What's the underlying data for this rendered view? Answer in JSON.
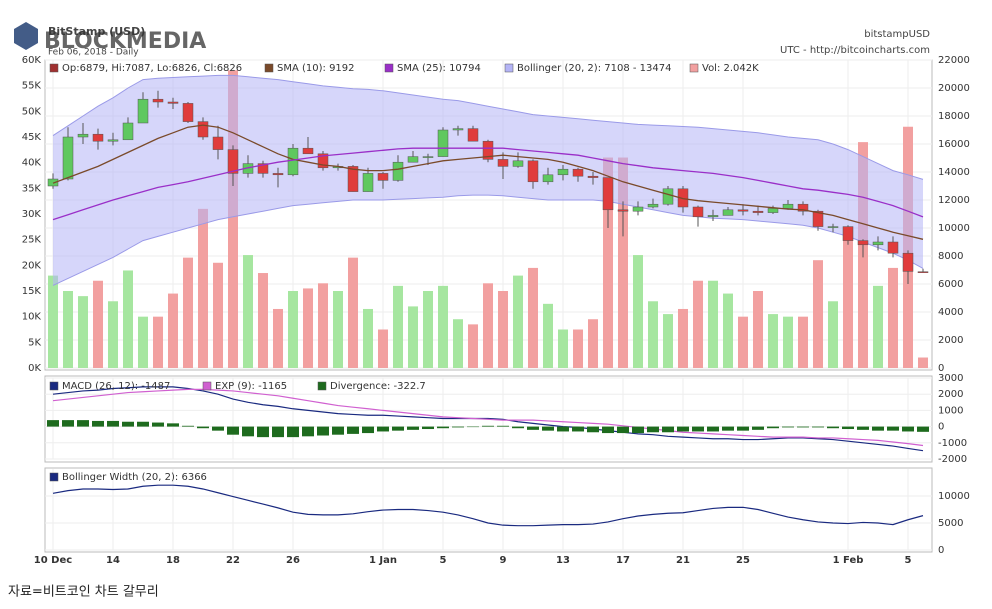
{
  "header": {
    "title": "BitStamp (USD)",
    "subtitle": "Feb 06, 2018 - Daily",
    "symbol": "bitstampUSD",
    "credit": "UTC - http://bitcoincharts.com",
    "watermark": "BLOCKMEDIA"
  },
  "caption": "자료=비트코인 차트 갈무리",
  "chart_data": [
    {
      "type": "candlestick",
      "ohlc": {
        "name": "Op:6879, Hi:7087, Lo:6826, Cl:6826",
        "color": "#a03030",
        "up_color": "#5fc85f",
        "down_color": "#e03c3c",
        "open": [
          13000,
          13500,
          16500,
          16700,
          16200,
          16300,
          17500,
          19200,
          19000,
          18900,
          17600,
          16500,
          15600,
          13900,
          14600,
          13900,
          13800,
          15700,
          15300,
          14300,
          14400,
          12600,
          13900,
          13400,
          14700,
          15100,
          15100,
          17000,
          17100,
          16200,
          14900,
          14400,
          14800,
          13300,
          13800,
          14200,
          13700,
          13600,
          11300,
          11200,
          11500,
          11700,
          12800,
          11500,
          10800,
          10900,
          11300,
          11200,
          11100,
          11400,
          11700,
          11200,
          10100,
          10100,
          9100,
          8800,
          9000,
          8200,
          6879
        ],
        "high": [
          13900,
          17200,
          17500,
          17100,
          16800,
          17900,
          19700,
          19800,
          19300,
          19000,
          17900,
          17300,
          15900,
          15200,
          14800,
          14300,
          16000,
          16500,
          15500,
          14600,
          14500,
          14300,
          14000,
          15200,
          15500,
          15300,
          17200,
          17300,
          17300,
          16300,
          15400,
          15400,
          14900,
          14300,
          14500,
          14300,
          14000,
          13600,
          11900,
          11900,
          12100,
          13000,
          13000,
          11600,
          11300,
          11500,
          11700,
          11600,
          11600,
          12000,
          11900,
          11300,
          10300,
          10200,
          9200,
          9400,
          9400,
          8400,
          7087
        ],
        "low": [
          12800,
          13400,
          16000,
          15600,
          15900,
          16300,
          17500,
          18600,
          18500,
          17500,
          16300,
          14900,
          13000,
          13600,
          13600,
          12900,
          13700,
          15300,
          14100,
          14100,
          12600,
          12600,
          12800,
          13300,
          14700,
          14500,
          15100,
          16600,
          16200,
          14700,
          13500,
          14300,
          12800,
          13100,
          13400,
          13300,
          13100,
          10000,
          9400,
          10900,
          11400,
          11600,
          11100,
          10100,
          10500,
          10900,
          10900,
          10900,
          11000,
          11300,
          10900,
          9800,
          9700,
          8800,
          7900,
          8400,
          7900,
          6000,
          6826
        ],
        "close": [
          13500,
          16500,
          16700,
          16200,
          16300,
          17500,
          19200,
          19000,
          18900,
          17600,
          16500,
          15600,
          13900,
          14600,
          13900,
          13800,
          15700,
          15300,
          14300,
          14400,
          12600,
          13900,
          13400,
          14700,
          15100,
          15100,
          17000,
          17100,
          16200,
          14900,
          14400,
          14800,
          13300,
          13800,
          14200,
          13700,
          13600,
          11300,
          11200,
          11500,
          11700,
          12800,
          11500,
          10800,
          10900,
          11300,
          11200,
          11100,
          11400,
          11700,
          11200,
          10100,
          10100,
          9100,
          8800,
          9000,
          8200,
          6900,
          6826
        ]
      },
      "volume": {
        "name": "Vol: 2.042K",
        "color": "#f2a0a0",
        "up_color": "#a6e6a0",
        "down_color": "#f2a0a0",
        "values": [
          18,
          15,
          14,
          17,
          13,
          19,
          10,
          10,
          14.5,
          21.5,
          31,
          20.5,
          58,
          22,
          18.5,
          11.5,
          15,
          15.5,
          16.5,
          15,
          21.5,
          11.5,
          7.5,
          16,
          12,
          15,
          16,
          9.5,
          8.5,
          16.5,
          15,
          18,
          19.5,
          12.5,
          7.5,
          7.5,
          9.5,
          41,
          41,
          22,
          13,
          10.5,
          11.5,
          17,
          17,
          14.5,
          10,
          15,
          10.5,
          10,
          10,
          21,
          13,
          25,
          44,
          16,
          19.5,
          47,
          2.042
        ]
      },
      "bands": [
        {
          "name": "Bollinger (20, 2): 7108 - 13474",
          "color": "#b4b4f6",
          "axis": "y2",
          "upper": [
            16600,
            17300,
            18000,
            18700,
            19300,
            20000,
            20600,
            20700,
            20750,
            20800,
            20850,
            20900,
            20900,
            20800,
            20700,
            20600,
            20450,
            20300,
            20150,
            20050,
            19950,
            19900,
            19800,
            19650,
            19500,
            19350,
            19200,
            19100,
            18900,
            18700,
            18500,
            18300,
            18100,
            18000,
            17900,
            17800,
            17700,
            17600,
            17500,
            17400,
            17350,
            17300,
            17250,
            17200,
            17100,
            17000,
            16900,
            16800,
            16650,
            16500,
            16400,
            16300,
            16000,
            15600,
            15100,
            14600,
            14100,
            13800,
            13474
          ],
          "lower": [
            5900,
            6400,
            6900,
            7400,
            7900,
            8500,
            9100,
            9400,
            9700,
            10000,
            10300,
            10600,
            10800,
            11000,
            11200,
            11400,
            11600,
            11700,
            11800,
            11900,
            12000,
            12000,
            12000,
            12050,
            12100,
            12150,
            12200,
            12300,
            12350,
            12350,
            12300,
            12200,
            12100,
            12000,
            12000,
            12000,
            12000,
            11900,
            11700,
            11500,
            11300,
            11100,
            10900,
            10800,
            10700,
            10650,
            10600,
            10500,
            10400,
            10300,
            10200,
            10000,
            9700,
            9400,
            9000,
            8600,
            8200,
            7700,
            7108
          ]
        }
      ],
      "lines": [
        {
          "name": "SMA (10): 9192",
          "color": "#7a4a2a",
          "axis": "y2",
          "values": [
            13200,
            13600,
            14000,
            14400,
            14900,
            15400,
            15900,
            16400,
            16800,
            17200,
            17350,
            17200,
            16800,
            16300,
            15800,
            15300,
            14900,
            14700,
            14500,
            14400,
            14200,
            14100,
            14100,
            14200,
            14400,
            14600,
            14800,
            14900,
            15000,
            15100,
            15200,
            15100,
            15000,
            14900,
            14700,
            14400,
            14100,
            13700,
            13300,
            13000,
            12700,
            12400,
            12100,
            11950,
            11850,
            11750,
            11650,
            11550,
            11450,
            11350,
            11300,
            11100,
            10900,
            10600,
            10300,
            10000,
            9700,
            9450,
            9192
          ]
        },
        {
          "name": "SMA (25): 10794",
          "color": "#9a2fc8",
          "axis": "y2",
          "values": [
            10600,
            10950,
            11300,
            11650,
            12000,
            12300,
            12600,
            12900,
            13100,
            13300,
            13550,
            13800,
            14050,
            14300,
            14500,
            14700,
            14850,
            15000,
            15150,
            15250,
            15350,
            15450,
            15550,
            15650,
            15700,
            15700,
            15700,
            15700,
            15700,
            15700,
            15700,
            15600,
            15500,
            15400,
            15300,
            15200,
            15000,
            14800,
            14600,
            14450,
            14300,
            14200,
            14100,
            14000,
            13900,
            13750,
            13600,
            13400,
            13200,
            13000,
            12800,
            12700,
            12550,
            12400,
            12200,
            11900,
            11600,
            11200,
            10794
          ]
        }
      ],
      "ylim": [
        0,
        60
      ],
      "yticks": [
        {
          "value": 0,
          "label": "0K"
        },
        {
          "value": 5,
          "label": "5K"
        },
        {
          "value": 10,
          "label": "10K"
        },
        {
          "value": 15,
          "label": "15K"
        },
        {
          "value": 20,
          "label": "20K"
        },
        {
          "value": 25,
          "label": "25K"
        },
        {
          "value": 30,
          "label": "30K"
        },
        {
          "value": 35,
          "label": "35K"
        },
        {
          "value": 40,
          "label": "40K"
        },
        {
          "value": 45,
          "label": "45K"
        },
        {
          "value": 50,
          "label": "50K"
        },
        {
          "value": 55,
          "label": "55K"
        },
        {
          "value": 60,
          "label": "60K"
        }
      ],
      "y2lim": [
        0,
        22000
      ],
      "y2ticks": [
        0,
        2000,
        4000,
        6000,
        8000,
        10000,
        12000,
        14000,
        16000,
        18000,
        20000,
        22000
      ],
      "grid": true
    },
    {
      "type": "macd",
      "series": [
        {
          "name": "MACD (26, 12): -1487",
          "color": "#1a2a80",
          "values": [
            2000,
            2100,
            2200,
            2250,
            2350,
            2400,
            2450,
            2450,
            2450,
            2350,
            2200,
            2000,
            1700,
            1500,
            1350,
            1250,
            1100,
            1000,
            900,
            800,
            750,
            700,
            700,
            650,
            600,
            550,
            500,
            500,
            500,
            500,
            450,
            300,
            200,
            100,
            0,
            -50,
            -150,
            -250,
            -350,
            -450,
            -500,
            -600,
            -650,
            -700,
            -750,
            -750,
            -800,
            -800,
            -750,
            -700,
            -700,
            -750,
            -800,
            -900,
            -1000,
            -1100,
            -1200,
            -1350,
            -1487
          ]
        },
        {
          "name": "EXP (9): -1165",
          "color": "#d060d0",
          "values": [
            1600,
            1700,
            1800,
            1900,
            2000,
            2100,
            2150,
            2200,
            2250,
            2300,
            2300,
            2250,
            2200,
            2100,
            2000,
            1900,
            1750,
            1600,
            1450,
            1300,
            1200,
            1100,
            1000,
            900,
            800,
            700,
            600,
            550,
            500,
            450,
            400,
            400,
            400,
            350,
            300,
            250,
            200,
            150,
            50,
            -50,
            -150,
            -250,
            -350,
            -400,
            -450,
            -500,
            -550,
            -600,
            -650,
            -650,
            -650,
            -700,
            -700,
            -750,
            -800,
            -850,
            -950,
            -1050,
            -1165
          ]
        },
        {
          "name": "Divergence: -322.7",
          "color": "#1e6b1e",
          "style": "bar",
          "values": [
            400,
            400,
            400,
            350,
            350,
            300,
            300,
            250,
            200,
            50,
            -100,
            -250,
            -500,
            -600,
            -650,
            -650,
            -650,
            -600,
            -550,
            -500,
            -450,
            -400,
            -300,
            -250,
            -200,
            -150,
            -100,
            -50,
            0,
            50,
            50,
            -100,
            -200,
            -250,
            -300,
            -300,
            -350,
            -400,
            -400,
            -400,
            -350,
            -350,
            -300,
            -300,
            -300,
            -250,
            -250,
            -200,
            -100,
            -50,
            -50,
            -50,
            -100,
            -150,
            -200,
            -250,
            -250,
            -300,
            -322.7
          ]
        }
      ],
      "ylim": [
        -2000,
        3000
      ],
      "yticks": [
        -2000,
        -1000,
        0,
        1000,
        2000,
        3000
      ],
      "grid": true
    },
    {
      "type": "line",
      "categories": [
        "10 Dec",
        null,
        null,
        null,
        "14",
        null,
        null,
        null,
        "18",
        null,
        null,
        null,
        "22",
        null,
        null,
        null,
        "26",
        null,
        null,
        null,
        null,
        null,
        "1 Jan",
        null,
        null,
        null,
        "5",
        null,
        null,
        null,
        "9",
        null,
        null,
        null,
        "13",
        null,
        null,
        null,
        "17",
        null,
        null,
        null,
        "21",
        null,
        null,
        null,
        "25",
        null,
        null,
        null,
        null,
        null,
        null,
        "1 Feb",
        null,
        null,
        null,
        "5",
        null
      ],
      "series": [
        {
          "name": "Bollinger Width (20, 2): 6366",
          "color": "#1a2a80",
          "values": [
            10500,
            11000,
            11300,
            11300,
            11200,
            11300,
            11800,
            12000,
            12000,
            11800,
            11300,
            10600,
            9900,
            9200,
            8500,
            7800,
            7000,
            6600,
            6500,
            6500,
            6700,
            7100,
            7400,
            7500,
            7500,
            7300,
            7000,
            6500,
            5800,
            5000,
            4600,
            4500,
            4500,
            4600,
            4700,
            4700,
            4800,
            5200,
            5800,
            6300,
            6600,
            6800,
            6900,
            7300,
            7700,
            7900,
            7900,
            7500,
            6800,
            6100,
            5600,
            5200,
            5000,
            4900,
            5100,
            5000,
            4700,
            5600,
            6366
          ]
        }
      ],
      "ylim": [
        0,
        15000
      ],
      "yticks": [
        0,
        5000,
        10000
      ],
      "grid": true
    }
  ]
}
